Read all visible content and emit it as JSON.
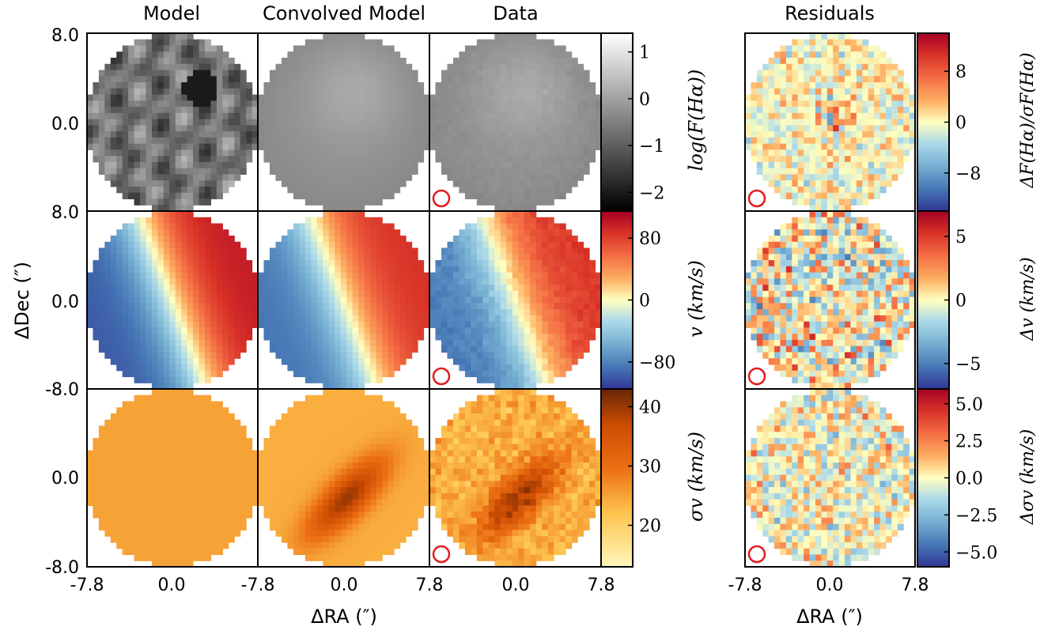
{
  "chart_data": {
    "type": "heatmap",
    "column_titles": [
      "Model",
      "Convolved Model",
      "Data",
      "Residuals"
    ],
    "xlabel": "ΔRA (″)",
    "ylabel": "ΔDec (″)",
    "x_ticks": [
      "-7.8",
      "0.0",
      "-7.8",
      "0.0",
      "7.8",
      "0.0",
      "7.8"
    ],
    "x_ticks_residuals": [
      "-7.8",
      "0.0",
      "7.8"
    ],
    "y_ticks": {
      "row0": [
        "8.0",
        "0.0"
      ],
      "row1": [
        "8.0",
        "0.0",
        "-8.0"
      ],
      "row2": [
        "0.0",
        "-8.0"
      ]
    },
    "x_range": [
      -7.8,
      7.8
    ],
    "y_range": [
      -8.0,
      8.0
    ],
    "rows": [
      {
        "quantity": "log(F(Hα))",
        "colorbar": {
          "label": "log(F(Hα))",
          "ticks": [
            "1",
            "0",
            "−1",
            "−2"
          ],
          "tick_values": [
            1,
            0,
            -1,
            -2
          ],
          "range": [
            -2.4,
            1.4
          ],
          "colormap": "gray"
        },
        "residual_colorbar": {
          "label": "ΔF(Hα)/σF(Hα)",
          "ticks": [
            "8",
            "0",
            "−8"
          ],
          "tick_values": [
            8,
            0,
            -8
          ],
          "range": [
            -14,
            14
          ],
          "colormap": "RdYlBu_r"
        }
      },
      {
        "quantity": "v (km/s)",
        "colorbar": {
          "label": "v (km/s)",
          "ticks": [
            "80",
            "0",
            "−80"
          ],
          "tick_values": [
            80,
            0,
            -80
          ],
          "range": [
            -115,
            115
          ],
          "colormap": "RdYlBu_r"
        },
        "residual_colorbar": {
          "label": "Δv (km/s)",
          "ticks": [
            "5",
            "0",
            "−5"
          ],
          "tick_values": [
            5,
            0,
            -5
          ],
          "range": [
            -7,
            7
          ],
          "colormap": "RdYlBu_r"
        }
      },
      {
        "quantity": "σv (km/s)",
        "colorbar": {
          "label": "σv (km/s)",
          "ticks": [
            "40",
            "30",
            "20"
          ],
          "tick_values": [
            40,
            30,
            20
          ],
          "range": [
            13,
            43
          ],
          "colormap": "YlOrBr"
        },
        "residual_colorbar": {
          "label": "Δσv (km/s)",
          "ticks": [
            "5.0",
            "2.5",
            "0.0",
            "−2.5",
            "−5.0"
          ],
          "tick_values": [
            5,
            2.5,
            0,
            -2.5,
            -5
          ],
          "range": [
            -6,
            6
          ],
          "colormap": "RdYlBu_r"
        }
      }
    ],
    "beam_marker_color": "#e41a1c"
  }
}
